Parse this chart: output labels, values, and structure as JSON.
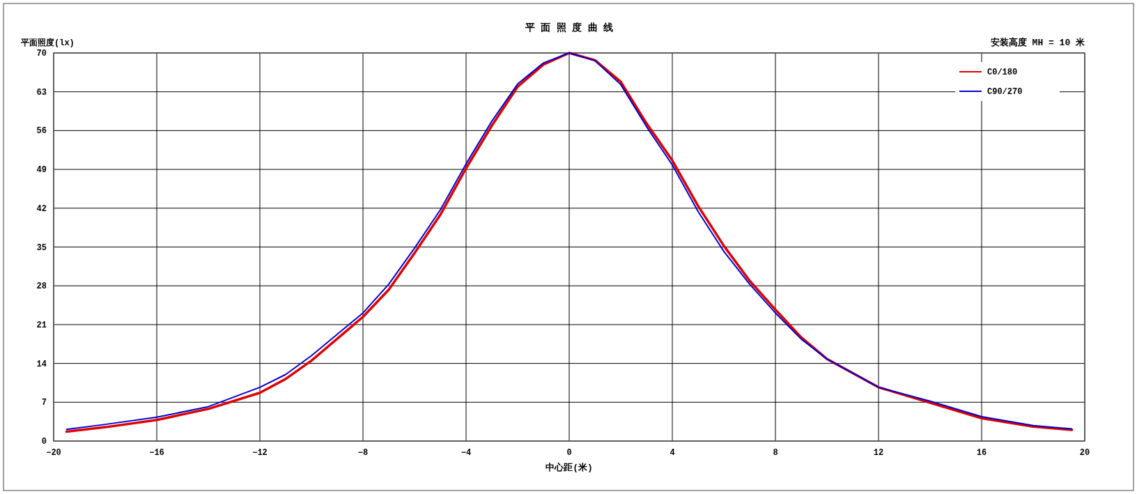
{
  "chart_data": {
    "type": "line",
    "title": "平 面 照 度 曲 线",
    "xlabel": "中心距(米)",
    "ylabel": "平面照度(lx)",
    "annotations": [
      "安装高度 MH = 10 米"
    ],
    "xlim": [
      -20,
      20
    ],
    "xticks": [
      -20,
      -16,
      -12,
      -8,
      -4,
      0,
      4,
      8,
      12,
      16,
      20
    ],
    "ylim": [
      0,
      70
    ],
    "yticks": [
      0,
      7,
      14,
      21,
      28,
      35,
      42,
      49,
      56,
      63,
      70
    ],
    "grid": true,
    "legend": "top right",
    "marker": "none",
    "line_style": "solid",
    "x": [
      -19.5,
      -18,
      -16,
      -14,
      -12,
      -11,
      -10,
      -8,
      -7,
      -6,
      -5,
      -4,
      -3,
      -2,
      -1,
      0,
      1,
      2,
      3,
      4,
      5,
      6,
      7,
      8,
      9,
      10,
      12,
      14,
      16,
      18,
      19.5
    ],
    "series": [
      {
        "name": "C0/180",
        "color": "#e00000",
        "values": [
          1.7,
          2.5,
          3.8,
          5.8,
          8.7,
          11.2,
          14.5,
          22.4,
          27.3,
          33.9,
          40.8,
          49.2,
          56.9,
          63.9,
          67.9,
          70,
          68.7,
          64.8,
          57.3,
          50.6,
          42.4,
          35.2,
          28.9,
          23.7,
          18.7,
          14.8,
          9.7,
          6.9,
          4.1,
          2.6,
          2.0
        ]
      },
      {
        "name": "C90/270",
        "color": "#0000d0",
        "values": [
          2.1,
          3.0,
          4.3,
          6.2,
          9.7,
          12.0,
          15.4,
          23.1,
          28.3,
          34.8,
          41.7,
          50.0,
          57.7,
          64.4,
          68.2,
          70,
          68.6,
          64.3,
          56.7,
          49.8,
          41.4,
          34.2,
          28.3,
          23.1,
          18.4,
          14.8,
          9.7,
          7.2,
          4.4,
          2.8,
          2.2
        ]
      }
    ]
  }
}
